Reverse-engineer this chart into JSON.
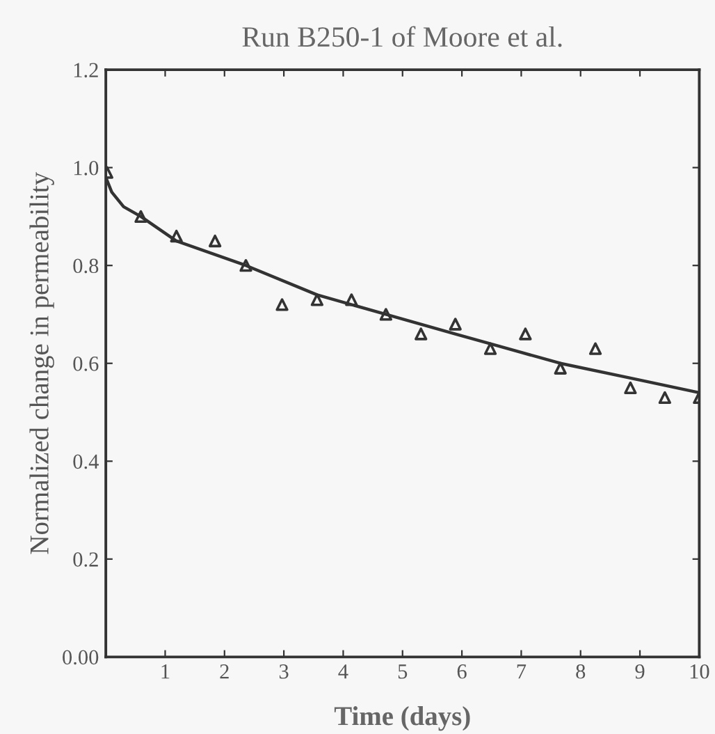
{
  "chart_data": {
    "type": "scatter",
    "title": "Run B250-1 of Moore et al.",
    "xlabel": "Time (days)",
    "ylabel": "Normalized change in permeability",
    "series": [
      {
        "color": "#333333",
        "marker": "triangle",
        "x": [
          0.02,
          0.59,
          1.19,
          1.84,
          2.36,
          2.97,
          3.56,
          4.14,
          4.72,
          5.31,
          5.89,
          6.48,
          7.07,
          7.66,
          8.25,
          8.84,
          9.42,
          10.0
        ],
        "values": [
          0.99,
          0.9,
          0.86,
          0.85,
          0.8,
          0.72,
          0.73,
          0.73,
          0.7,
          0.66,
          0.68,
          0.63,
          0.66,
          0.59,
          0.63,
          0.55,
          0.53,
          0.53
        ]
      },
      {
        "type": "line",
        "color": "#333333",
        "marker": "none",
        "x": [
          0,
          0.1,
          0.3,
          0.59,
          1.19,
          2.36,
          3.56,
          4.72,
          5.89,
          6.48,
          7.66,
          8.84,
          10.0
        ],
        "values": [
          0.98,
          0.95,
          0.92,
          0.9,
          0.85,
          0.8,
          0.74,
          0.7,
          0.66,
          0.64,
          0.6,
          0.57,
          0.54
        ]
      }
    ],
    "xlim": [
      0,
      10
    ],
    "ylim": [
      0,
      1.2
    ],
    "xticks": [
      {
        "value": 0,
        "label": null
      },
      1,
      2,
      3,
      4,
      5,
      6,
      7,
      8,
      9,
      10
    ],
    "yticks": [
      {
        "value": 0,
        "label": "0.00"
      },
      0.2,
      0.4,
      0.6,
      0.8,
      {
        "value": 1.0,
        "label": "1.0"
      },
      1.2
    ],
    "grid": false,
    "legend": false
  }
}
